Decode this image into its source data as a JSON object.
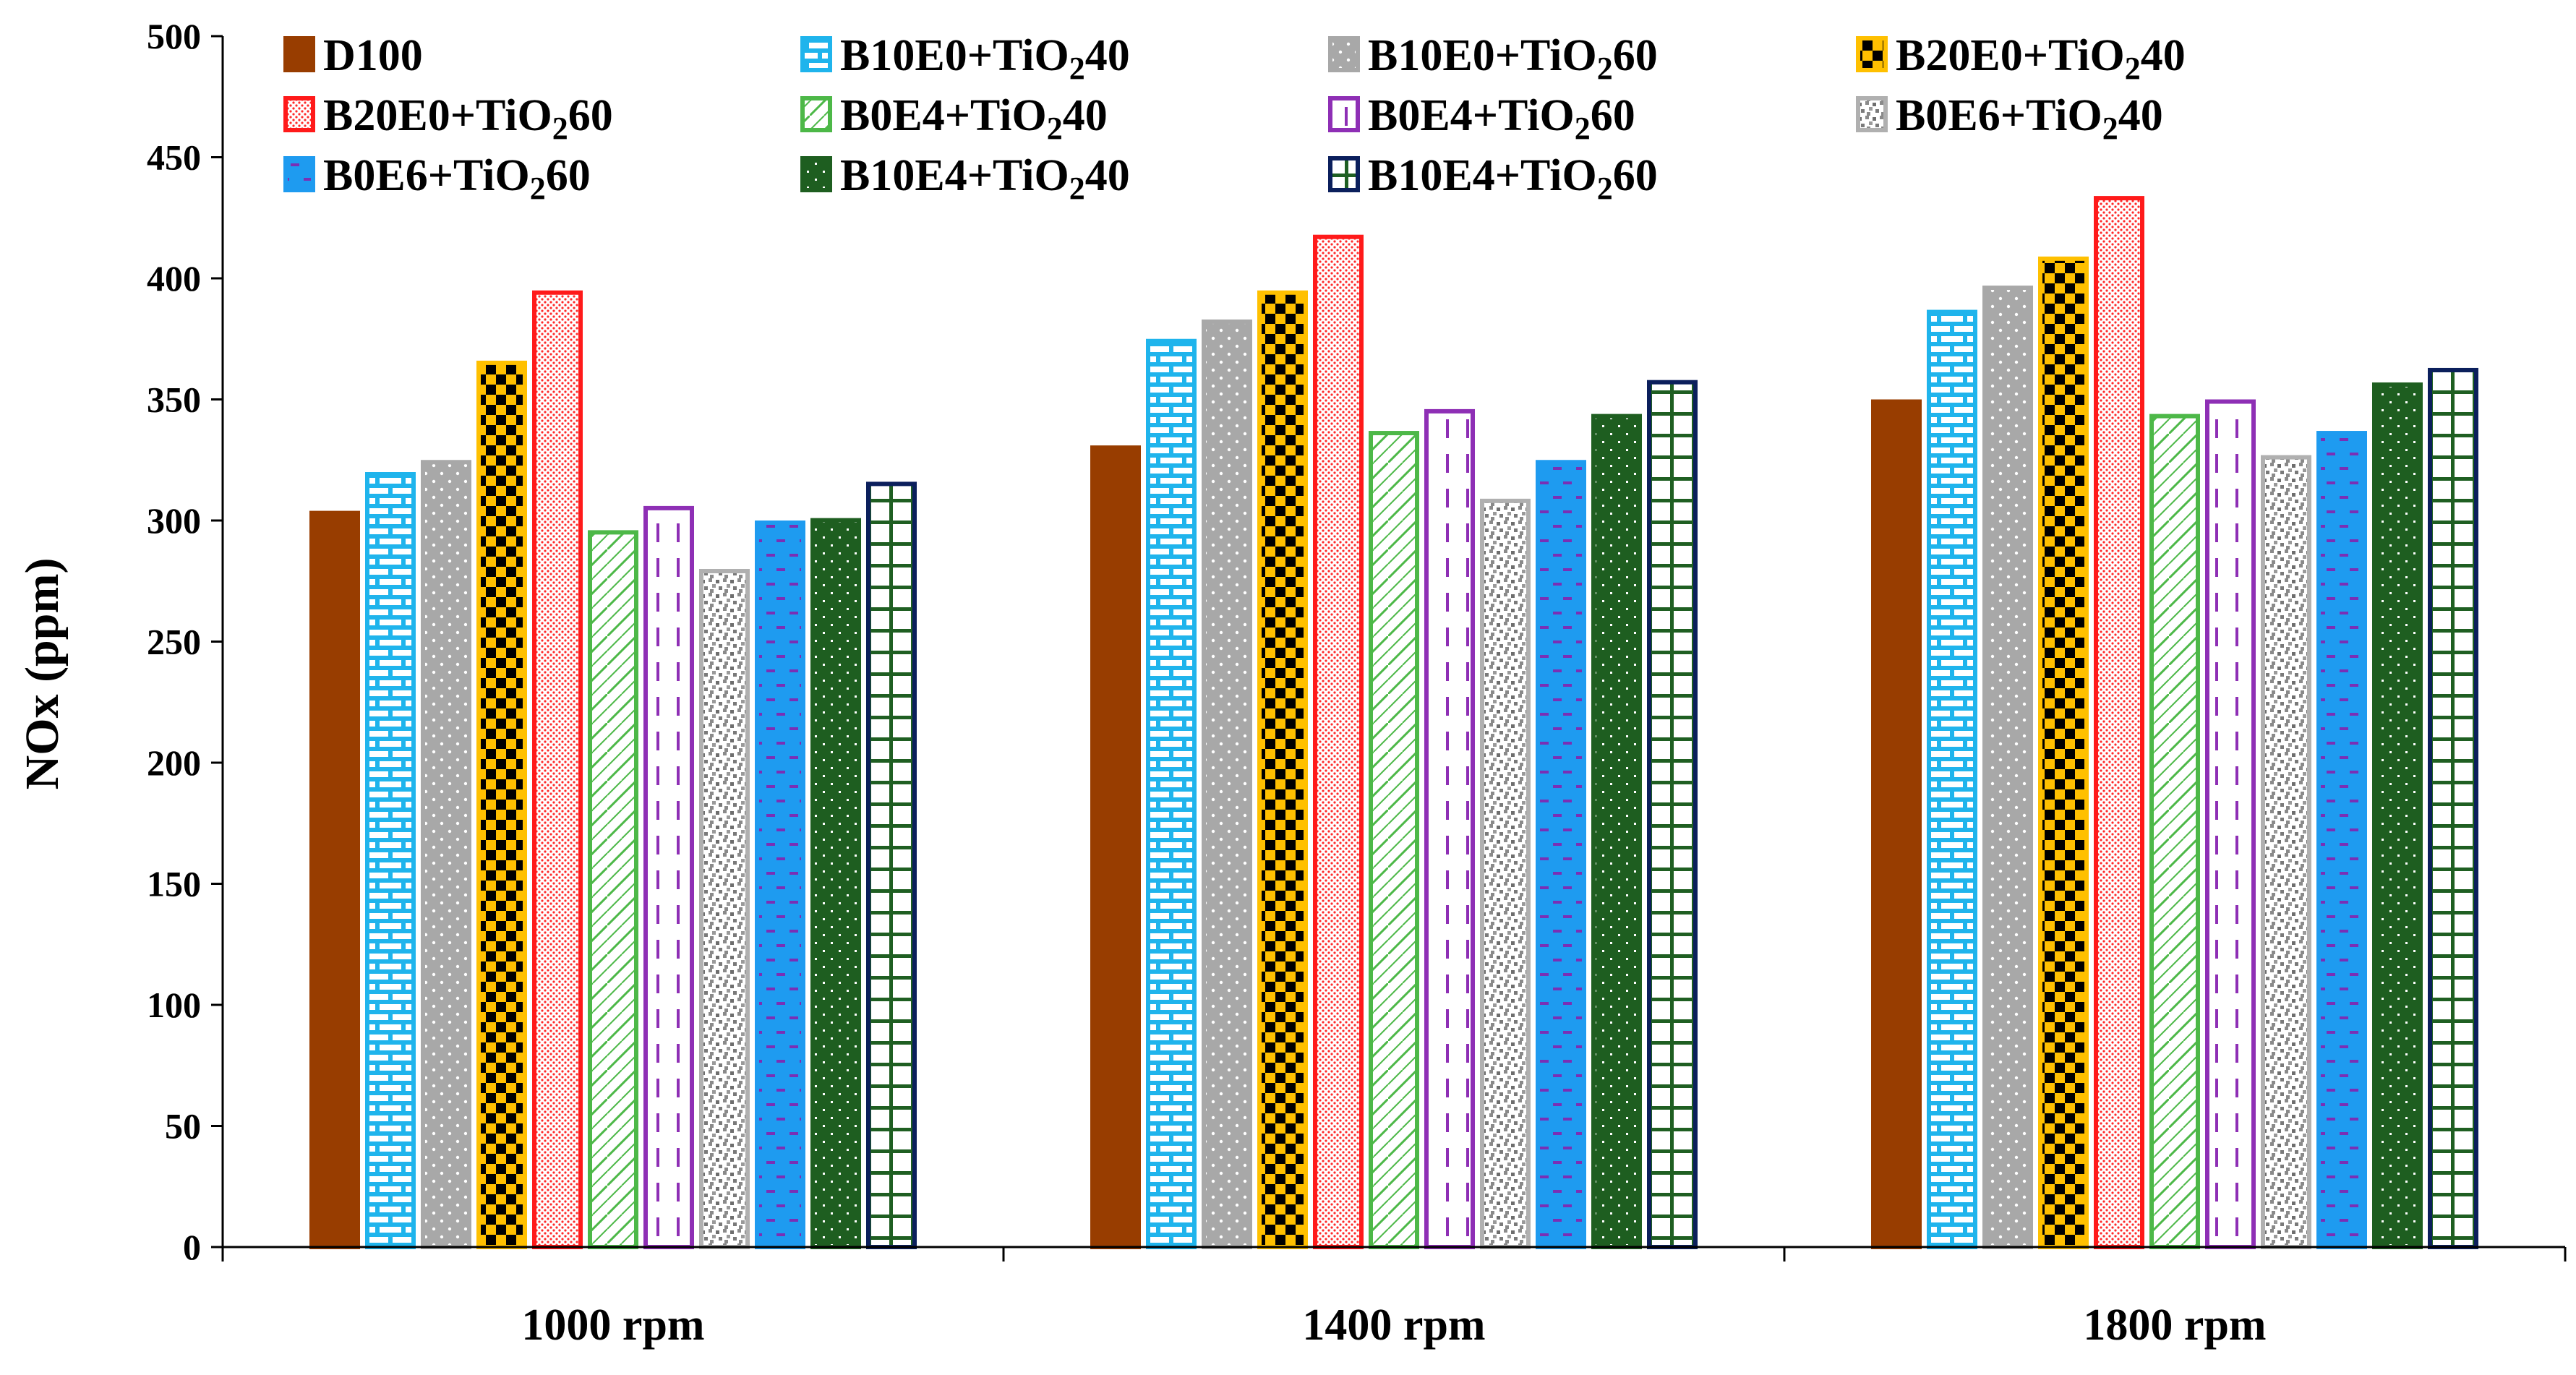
{
  "chart_data": {
    "type": "bar",
    "title": "",
    "xlabel": "",
    "ylabel": "NOx (ppm)",
    "ylim": [
      0,
      500
    ],
    "yticks": [
      "0",
      "50",
      "100",
      "150",
      "200",
      "250",
      "300",
      "350",
      "400",
      "450",
      "500"
    ],
    "categories": [
      "1000 rpm",
      "1400 rpm",
      "1800 rpm"
    ],
    "legend_position": "top, inside plot",
    "series": [
      {
        "name": "D100",
        "name_parts": [
          "D100"
        ],
        "values": [
          304,
          331,
          350
        ],
        "color": "#983D00",
        "pattern": "solid"
      },
      {
        "name": "B10E0+TiO240",
        "name_parts": [
          "B10E0+TiO",
          "2",
          "40"
        ],
        "values": [
          320,
          375,
          387
        ],
        "color": "#1FB4EC",
        "pattern": "bricks"
      },
      {
        "name": "B10E0+TiO260",
        "name_parts": [
          "B10E0+TiO",
          "2",
          "60"
        ],
        "values": [
          325,
          383,
          397
        ],
        "color": "#A8A8A8",
        "pattern": "dots"
      },
      {
        "name": "B20E0+TiO240",
        "name_parts": [
          "B20E0+TiO",
          "2",
          "40"
        ],
        "values": [
          366,
          395,
          409
        ],
        "color": "#FFC000",
        "pattern": "checker"
      },
      {
        "name": "B20E0+TiO260",
        "name_parts": [
          "B20E0+TiO",
          "2",
          "60"
        ],
        "values": [
          395,
          418,
          434
        ],
        "color": "#FF1A1A",
        "pattern": "fine-dots"
      },
      {
        "name": "B0E4+TiO240",
        "name_parts": [
          "B0E4+TiO",
          "2",
          "40"
        ],
        "values": [
          296,
          337,
          344
        ],
        "color": "#4DB848",
        "pattern": "diagonal"
      },
      {
        "name": "B0E4+TiO260",
        "name_parts": [
          "B0E4+TiO",
          "2",
          "60"
        ],
        "values": [
          306,
          346,
          350
        ],
        "color": "#8E2FB5",
        "pattern": "dashes"
      },
      {
        "name": "B0E6+TiO240",
        "name_parts": [
          "B0E6+TiO",
          "2",
          "40"
        ],
        "values": [
          280,
          309,
          327
        ],
        "color": "#B0B0B0",
        "pattern": "gray-noise"
      },
      {
        "name": "B0E6+TiO260",
        "name_parts": [
          "B0E6+TiO",
          "2",
          "60"
        ],
        "values": [
          300,
          325,
          337
        ],
        "color": "#1E9BF0",
        "pattern": "purple-dashes"
      },
      {
        "name": "B10E4+TiO240",
        "name_parts": [
          "B10E4+TiO",
          "2",
          "40"
        ],
        "values": [
          301,
          344,
          357
        ],
        "color": "#1E5E20",
        "pattern": "green-dots"
      },
      {
        "name": "B10E4+TiO260",
        "name_parts": [
          "B10E4+TiO",
          "2",
          "60"
        ],
        "values": [
          316,
          358,
          363
        ],
        "color": "#1F5F22",
        "pattern": "grid"
      }
    ]
  }
}
